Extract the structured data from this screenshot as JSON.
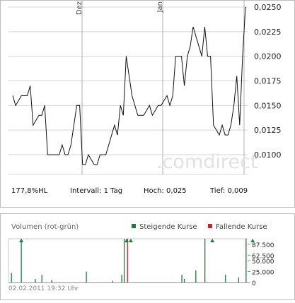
{
  "chart_data": [
    {
      "type": "line",
      "x_ticks": [
        "Dez",
        "Jan"
      ],
      "y_ticks": [
        "0,0250",
        "0,0225",
        "0,0200",
        "0,0175",
        "0,0150",
        "0,0125",
        "0,0100"
      ],
      "ylim": [
        0.009,
        0.0254
      ],
      "grid": true,
      "series": [
        {
          "values": [
            0.016,
            0.015,
            0.0155,
            0.016,
            0.016,
            0.016,
            0.017,
            0.013,
            0.0135,
            0.014,
            0.014,
            0.015,
            0.01,
            0.01,
            0.01,
            0.01,
            0.01,
            0.011,
            0.01,
            0.01,
            0.011,
            0.013,
            0.015,
            0.015,
            0.009,
            0.009,
            0.01,
            0.0095,
            0.009,
            0.009,
            0.01,
            0.01,
            0.01,
            0.011,
            0.012,
            0.013,
            0.012,
            0.015,
            0.014,
            0.02,
            0.018,
            0.016,
            0.015,
            0.014,
            0.014,
            0.014,
            0.0145,
            0.015,
            0.014,
            0.0145,
            0.015,
            0.015,
            0.0155,
            0.016,
            0.015,
            0.016,
            0.02,
            0.02,
            0.02,
            0.017,
            0.02,
            0.021,
            0.023,
            0.022,
            0.021,
            0.02,
            0.023,
            0.02,
            0.02,
            0.013,
            0.0125,
            0.012,
            0.013,
            0.012,
            0.012,
            0.013,
            0.015,
            0.018,
            0.013,
            0.02,
            0.025
          ]
        }
      ],
      "watermark": ".comdirect"
    },
    {
      "type": "bar",
      "title": "Volumen (rot-grün)",
      "legend": [
        {
          "label": "Steigende Kurse",
          "color": "#1b7a3c"
        },
        {
          "label": "Fallende Kurse",
          "color": "#cc2222"
        }
      ],
      "y_ticks": [
        "87.500",
        "62.500",
        "50.000",
        "25.000",
        "0"
      ],
      "ylim": [
        0,
        100000
      ],
      "volumes": [
        0,
        22000,
        0,
        0,
        0,
        0,
        0,
        0,
        0,
        0,
        0,
        0,
        0,
        100000,
        0,
        0,
        0,
        0,
        0,
        0,
        0,
        0,
        0,
        0,
        0,
        0,
        0,
        0,
        0,
        0,
        8000,
        0,
        0,
        0,
        0,
        0,
        0,
        0,
        18000,
        0,
        0,
        0,
        0,
        0,
        0,
        0,
        0,
        0,
        0,
        0,
        6000,
        0,
        0,
        0,
        0,
        0,
        0,
        0,
        0,
        0,
        0,
        0,
        0,
        0,
        0,
        0,
        0,
        0,
        0,
        0,
        0,
        0,
        0,
        0,
        0,
        0,
        0,
        0,
        0,
        0,
        0,
        0,
        0,
        0,
        0,
        0,
        0,
        0,
        0,
        0,
        0,
        0,
        25000,
        0,
        0,
        0,
        0,
        0,
        0,
        0,
        0,
        0,
        0,
        0,
        0,
        0,
        0,
        0,
        0,
        0,
        0,
        0,
        0,
        0,
        0,
        0,
        0,
        0,
        0,
        0,
        0,
        0,
        0,
        0,
        4000,
        0,
        0,
        0,
        0,
        0,
        0,
        0,
        0,
        0,
        0,
        18000,
        0,
        0,
        100000,
        0,
        0,
        0,
        100000,
        0,
        0,
        0,
        0,
        0,
        0,
        0,
        0,
        0,
        0,
        0,
        0,
        0,
        0,
        0,
        0,
        0,
        0,
        0,
        0,
        0,
        0,
        0,
        0,
        0,
        0,
        0,
        0,
        0,
        0,
        0,
        0,
        0,
        0,
        0,
        0,
        0,
        0,
        0,
        0,
        0,
        0,
        0,
        0,
        0,
        0,
        0,
        0,
        0,
        0,
        0,
        0,
        0,
        0,
        0,
        0,
        0,
        0,
        0,
        0,
        0,
        0,
        0,
        0,
        0,
        18000,
        0,
        0,
        8000,
        0,
        0,
        0,
        0,
        0,
        0,
        0,
        0,
        0,
        0,
        0,
        0,
        0,
        28000,
        0,
        0,
        0,
        0,
        0,
        0,
        0,
        0,
        0,
        0,
        100000,
        0,
        0,
        0,
        0,
        0,
        0,
        0,
        0,
        0,
        0,
        0,
        0,
        0,
        0,
        0,
        0,
        0,
        0,
        0,
        0,
        0,
        0,
        0,
        0,
        18000,
        0,
        0,
        0,
        0,
        0,
        0,
        0,
        0,
        0,
        0,
        0,
        0,
        0,
        0,
        0,
        12000,
        0,
        0,
        0,
        0,
        0,
        0,
        0,
        0,
        100000,
        0
      ],
      "colors": [
        "g",
        "g",
        "g",
        "g",
        "g",
        "g",
        "g",
        "g",
        "g",
        "g",
        "g",
        "g",
        "g",
        "g",
        "g",
        "g",
        "g",
        "g",
        "g",
        "g",
        "g",
        "g",
        "g",
        "g",
        "g",
        "g",
        "g",
        "g",
        "g",
        "g",
        "g",
        "g",
        "g",
        "g",
        "g",
        "g",
        "g",
        "g",
        "g",
        "g",
        "g",
        "g",
        "g",
        "g",
        "g",
        "g",
        "g",
        "g",
        "g",
        "g",
        "g",
        "g",
        "g",
        "g",
        "g",
        "g",
        "g",
        "g",
        "g",
        "g",
        "g",
        "g",
        "g",
        "g",
        "g",
        "g",
        "g",
        "g",
        "g",
        "g",
        "g",
        "g",
        "g",
        "g",
        "g",
        "g",
        "g",
        "g",
        "g",
        "g",
        "g",
        "g",
        "g",
        "g",
        "g",
        "g",
        "g",
        "g",
        "g",
        "g",
        "g",
        "g",
        "g",
        "g",
        "g",
        "g",
        "g",
        "g",
        "g",
        "g",
        "g",
        "g",
        "g",
        "g",
        "g",
        "g",
        "g",
        "g",
        "g",
        "g",
        "g",
        "g",
        "g",
        "g",
        "g",
        "g",
        "g",
        "g",
        "g",
        "g",
        "g",
        "g",
        "g",
        "g",
        "g",
        "g",
        "g",
        "g",
        "g",
        "g",
        "g",
        "g",
        "g",
        "g",
        "g",
        "g",
        "g",
        "g",
        "g",
        "g",
        "g",
        "g",
        "r",
        "g",
        "g",
        "g",
        "g",
        "g",
        "g",
        "g",
        "g",
        "g",
        "g",
        "g",
        "g",
        "g",
        "g",
        "g",
        "g",
        "g",
        "g",
        "g",
        "g",
        "g",
        "g",
        "g",
        "g",
        "g",
        "g",
        "g",
        "g",
        "g",
        "g",
        "g",
        "g",
        "g",
        "g",
        "g",
        "g",
        "g",
        "g",
        "g",
        "g",
        "g",
        "g",
        "g",
        "g",
        "g",
        "g",
        "g",
        "g",
        "g",
        "g",
        "g",
        "g",
        "g",
        "g",
        "g",
        "g",
        "g",
        "g",
        "g",
        "g",
        "g",
        "g",
        "g",
        "g",
        "g",
        "g",
        "g",
        "g",
        "g",
        "g",
        "g",
        "g",
        "g",
        "g",
        "g",
        "g",
        "g",
        "g",
        "g",
        "g",
        "g",
        "g",
        "g",
        "g",
        "g",
        "g",
        "g",
        "g",
        "g",
        "g",
        "g",
        "g",
        "g",
        "g",
        "g",
        "g",
        "g",
        "g",
        "g",
        "g",
        "g",
        "g",
        "g",
        "g",
        "g",
        "g",
        "g",
        "g",
        "g",
        "g",
        "g",
        "g",
        "g",
        "g",
        "g",
        "g",
        "g",
        "g",
        "g",
        "g",
        "g",
        "g",
        "g",
        "g",
        "g",
        "g",
        "g",
        "g",
        "g",
        "g",
        "g",
        "g",
        "g",
        "g",
        "g",
        "g",
        "g",
        "g",
        "g",
        "g",
        "g",
        "g",
        "g",
        "g",
        "g"
      ],
      "overflow_markers": [
        13,
        141,
        146,
        245,
        294
      ]
    }
  ],
  "stats": {
    "hl": "177,8%HL",
    "interval": "Intervall: 1 Tag",
    "high": "Hoch:  0,025",
    "low": "Tief:  0,009"
  },
  "timestamp": "02.02.2011 19:32 Uhr"
}
